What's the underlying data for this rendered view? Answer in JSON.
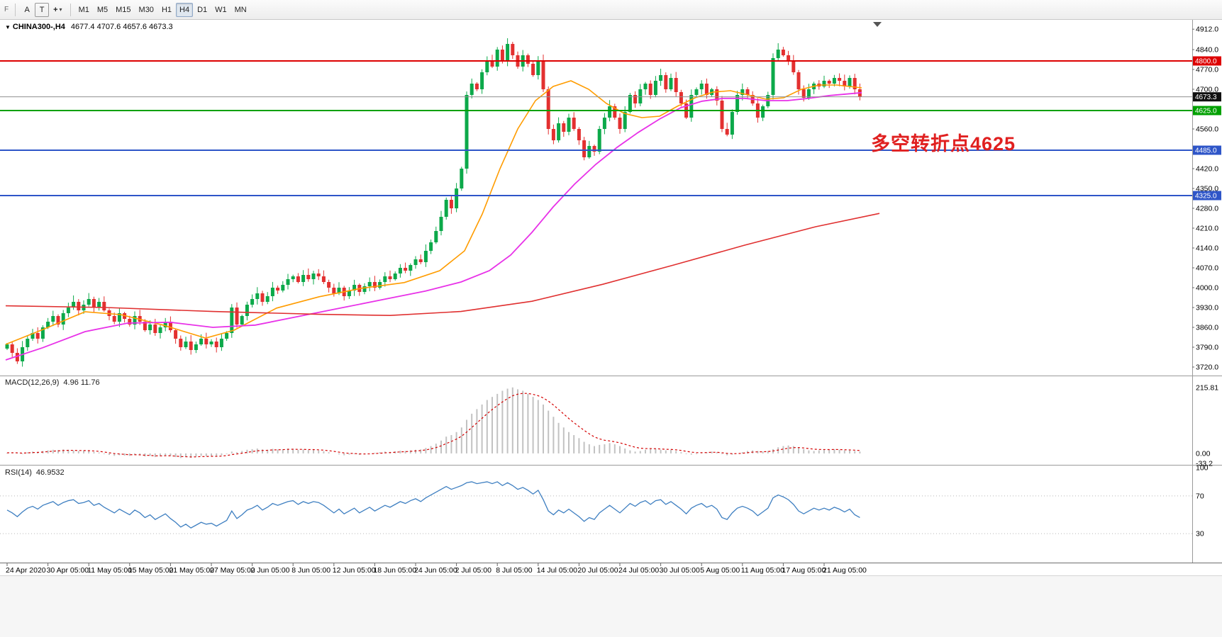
{
  "toolbar": {
    "edge_label": "F",
    "buttons": [
      {
        "id": "annotations-tool",
        "label": "A"
      },
      {
        "id": "text-tool",
        "label": "T"
      },
      {
        "id": "cursor-tool",
        "label": "+",
        "caret": "▾"
      }
    ],
    "timeframes": [
      "M1",
      "M5",
      "M15",
      "M30",
      "H1",
      "H4",
      "D1",
      "W1",
      "MN"
    ],
    "active_timeframe": "H4"
  },
  "chart": {
    "dropdown_glyph": "▼",
    "title": "CHINA300-,H4",
    "ohlc": "4677.4 4707.6 4657.6 4673.3",
    "macd_label": "MACD(12,26,9)",
    "macd_values": "4.96 11.76",
    "rsi_label": "RSI(14)",
    "rsi_value": "46.9532",
    "annotation": {
      "text": "多空转折点4625",
      "color": "#e02020"
    }
  },
  "chart_data": {
    "type": "candlestick",
    "symbol": "CHINA300-",
    "timeframe": "H4",
    "ohlc_header": {
      "open": 4677.4,
      "high": 4707.6,
      "low": 4657.6,
      "close": 4673.3
    },
    "price_axis": {
      "min": 3690,
      "max": 4940,
      "ticks": [
        4912.0,
        4840.0,
        4770.0,
        4700.0,
        4560.0,
        4420.0,
        4350.0,
        4280.0,
        4210.0,
        4140.0,
        4070.0,
        4000.0,
        3930.0,
        3860.0,
        3790.0,
        3720.0
      ]
    },
    "levels": [
      {
        "price": 4800.0,
        "line_color": "#dd0000",
        "tag_bg": "#dd0000",
        "width": 2,
        "current": false
      },
      {
        "price": 4673.3,
        "line_color": "#909090",
        "tag_bg": "#111111",
        "width": 1,
        "current": true
      },
      {
        "price": 4625.0,
        "line_color": "#00a000",
        "tag_bg": "#00a000",
        "width": 2,
        "current": false
      },
      {
        "price": 4485.0,
        "line_color": "#2e55c8",
        "tag_bg": "#2e55c8",
        "width": 2,
        "current": false
      },
      {
        "price": 4325.0,
        "line_color": "#2e55c8",
        "tag_bg": "#2e55c8",
        "width": 2,
        "current": false
      }
    ],
    "candles": {
      "up_color": "#0ca94a",
      "down_color": "#e33030",
      "closes": [
        3800,
        3770,
        3740,
        3790,
        3820,
        3840,
        3820,
        3860,
        3880,
        3900,
        3870,
        3910,
        3930,
        3950,
        3920,
        3940,
        3960,
        3930,
        3950,
        3920,
        3900,
        3880,
        3910,
        3890,
        3870,
        3900,
        3880,
        3850,
        3870,
        3840,
        3860,
        3880,
        3850,
        3820,
        3790,
        3810,
        3780,
        3800,
        3820,
        3800,
        3810,
        3790,
        3820,
        3840,
        3930,
        3870,
        3900,
        3940,
        3960,
        3980,
        3950,
        3970,
        4000,
        3990,
        4010,
        4030,
        4040,
        4020,
        4045,
        4030,
        4050,
        4040,
        4020,
        4000,
        3980,
        4000,
        3970,
        3990,
        4010,
        3985,
        4005,
        4020,
        4000,
        4020,
        4040,
        4030,
        4050,
        4070,
        4060,
        4080,
        4100,
        4090,
        4130,
        4160,
        4200,
        4250,
        4310,
        4280,
        4350,
        4420,
        4680,
        4720,
        4700,
        4760,
        4800,
        4780,
        4840,
        4800,
        4860,
        4820,
        4780,
        4820,
        4790,
        4750,
        4800,
        4700,
        4560,
        4520,
        4580,
        4550,
        4600,
        4560,
        4520,
        4460,
        4500,
        4480,
        4560,
        4600,
        4640,
        4600,
        4560,
        4620,
        4680,
        4650,
        4700,
        4720,
        4680,
        4730,
        4750,
        4700,
        4740,
        4690,
        4650,
        4600,
        4680,
        4700,
        4720,
        4680,
        4700,
        4660,
        4560,
        4540,
        4620,
        4680,
        4700,
        4680,
        4650,
        4600,
        4640,
        4680,
        4810,
        4840,
        4820,
        4800,
        4760,
        4700,
        4670,
        4700,
        4720,
        4710,
        4730,
        4720,
        4740,
        4730,
        4710,
        4740,
        4700,
        4673
      ]
    },
    "moving_averages": [
      {
        "name": "ma-fast",
        "color": "#ff9c00",
        "width": 1.6,
        "points": [
          [
            8,
            3800
          ],
          [
            60,
            3852
          ],
          [
            120,
            3915
          ],
          [
            170,
            3905
          ],
          [
            230,
            3868
          ],
          [
            290,
            3822
          ],
          [
            330,
            3850
          ],
          [
            390,
            3928
          ],
          [
            450,
            3968
          ],
          [
            510,
            3998
          ],
          [
            570,
            4018
          ],
          [
            620,
            4060
          ],
          [
            655,
            4130
          ],
          [
            680,
            4260
          ],
          [
            705,
            4420
          ],
          [
            730,
            4560
          ],
          [
            755,
            4660
          ],
          [
            780,
            4710
          ],
          [
            805,
            4730
          ],
          [
            830,
            4700
          ],
          [
            855,
            4650
          ],
          [
            880,
            4615
          ],
          [
            905,
            4600
          ],
          [
            930,
            4605
          ],
          [
            955,
            4640
          ],
          [
            980,
            4670
          ],
          [
            1005,
            4690
          ],
          [
            1030,
            4695
          ],
          [
            1055,
            4680
          ],
          [
            1080,
            4665
          ],
          [
            1105,
            4670
          ],
          [
            1130,
            4700
          ],
          [
            1155,
            4715
          ],
          [
            1180,
            4715
          ],
          [
            1215,
            4705
          ]
        ]
      },
      {
        "name": "ma-mid",
        "color": "#e832e8",
        "width": 1.8,
        "points": [
          [
            8,
            3745
          ],
          [
            60,
            3788
          ],
          [
            120,
            3845
          ],
          [
            180,
            3875
          ],
          [
            240,
            3878
          ],
          [
            300,
            3860
          ],
          [
            360,
            3868
          ],
          [
            420,
            3898
          ],
          [
            480,
            3928
          ],
          [
            540,
            3958
          ],
          [
            600,
            3988
          ],
          [
            650,
            4020
          ],
          [
            690,
            4060
          ],
          [
            720,
            4115
          ],
          [
            750,
            4195
          ],
          [
            780,
            4285
          ],
          [
            810,
            4365
          ],
          [
            840,
            4435
          ],
          [
            870,
            4495
          ],
          [
            900,
            4548
          ],
          [
            930,
            4595
          ],
          [
            960,
            4635
          ],
          [
            990,
            4658
          ],
          [
            1020,
            4668
          ],
          [
            1050,
            4668
          ],
          [
            1080,
            4660
          ],
          [
            1110,
            4660
          ],
          [
            1140,
            4668
          ],
          [
            1170,
            4678
          ],
          [
            1215,
            4688
          ]
        ]
      },
      {
        "name": "ma-slow",
        "color": "#e03030",
        "width": 1.6,
        "points": [
          [
            8,
            3936
          ],
          [
            150,
            3930
          ],
          [
            300,
            3916
          ],
          [
            450,
            3906
          ],
          [
            550,
            3902
          ],
          [
            650,
            3916
          ],
          [
            750,
            3952
          ],
          [
            850,
            4012
          ],
          [
            950,
            4080
          ],
          [
            1050,
            4150
          ],
          [
            1150,
            4215
          ],
          [
            1240,
            4262
          ]
        ]
      }
    ],
    "macd": {
      "label": "MACD(12,26,9)",
      "values_text": "4.96 11.76",
      "hist_color": "#c2c2c2",
      "signal_color": "#d40000",
      "scale_labels": [
        "215.81",
        "0.00",
        "-33.2"
      ],
      "scale_values": [
        215.81,
        0,
        -33.2
      ],
      "histogram": [
        2,
        3,
        1,
        -2,
        4,
        6,
        5,
        8,
        10,
        12,
        11,
        13,
        12,
        10,
        8,
        9,
        8,
        5,
        3,
        -2,
        -5,
        -8,
        -6,
        -7,
        -8,
        -4,
        -6,
        -10,
        -8,
        -12,
        -9,
        -6,
        -8,
        -12,
        -15,
        -12,
        -14,
        -10,
        -8,
        -9,
        -8,
        -10,
        -6,
        -2,
        6,
        4,
        8,
        12,
        14,
        16,
        13,
        12,
        15,
        13,
        14,
        16,
        15,
        12,
        13,
        11,
        12,
        10,
        7,
        4,
        0,
        -3,
        -6,
        -4,
        -2,
        -5,
        -3,
        0,
        2,
        4,
        6,
        5,
        7,
        9,
        8,
        10,
        12,
        13,
        18,
        24,
        32,
        42,
        55,
        60,
        70,
        85,
        110,
        130,
        145,
        160,
        175,
        185,
        195,
        205,
        212,
        216,
        210,
        205,
        195,
        185,
        175,
        160,
        140,
        120,
        100,
        85,
        70,
        60,
        50,
        38,
        30,
        24,
        28,
        30,
        34,
        30,
        24,
        16,
        10,
        6,
        8,
        12,
        16,
        14,
        12,
        10,
        12,
        8,
        4,
        -2,
        -4,
        -2,
        2,
        4,
        6,
        4,
        -2,
        -6,
        -4,
        0,
        4,
        8,
        10,
        8,
        6,
        8,
        14,
        20,
        24,
        26,
        24,
        20,
        14,
        10,
        8,
        10,
        12,
        12,
        14,
        12,
        10,
        10,
        8,
        6
      ]
    },
    "rsi": {
      "label": "RSI(14)",
      "value": 46.9532,
      "color": "#3e7fc1",
      "level_labels": [
        "100",
        "70",
        "30"
      ],
      "level_values": [
        100,
        70,
        30
      ],
      "dotted_levels": [
        70,
        30
      ],
      "points": [
        55,
        52,
        48,
        53,
        57,
        59,
        56,
        60,
        62,
        64,
        60,
        63,
        65,
        66,
        62,
        63,
        65,
        60,
        62,
        58,
        55,
        52,
        56,
        53,
        50,
        55,
        52,
        47,
        50,
        45,
        48,
        51,
        46,
        42,
        37,
        40,
        36,
        39,
        42,
        40,
        41,
        38,
        41,
        44,
        54,
        46,
        50,
        55,
        57,
        60,
        55,
        58,
        62,
        60,
        62,
        64,
        65,
        61,
        64,
        62,
        64,
        63,
        60,
        56,
        52,
        56,
        51,
        54,
        57,
        52,
        55,
        58,
        54,
        57,
        60,
        58,
        61,
        64,
        62,
        65,
        67,
        64,
        68,
        71,
        74,
        77,
        80,
        77,
        79,
        81,
        84,
        85,
        83,
        84,
        85,
        83,
        85,
        81,
        84,
        81,
        77,
        79,
        76,
        72,
        76,
        66,
        54,
        50,
        55,
        52,
        56,
        52,
        48,
        43,
        47,
        45,
        52,
        56,
        60,
        56,
        52,
        57,
        62,
        59,
        63,
        65,
        61,
        65,
        66,
        61,
        64,
        60,
        56,
        51,
        57,
        60,
        62,
        58,
        60,
        56,
        47,
        45,
        52,
        57,
        59,
        57,
        54,
        49,
        53,
        57,
        68,
        71,
        69,
        66,
        61,
        54,
        51,
        54,
        57,
        55,
        57,
        55,
        58,
        56,
        53,
        56,
        50,
        47
      ]
    },
    "time_axis": [
      "24 Apr 2020",
      "30 Apr 05:00",
      "11 May 05:00",
      "15 May 05:00",
      "21 May 05:00",
      "27 May 05:00",
      "2 Jun 05:00",
      "8 Jun 05:00",
      "12 Jun 05:00",
      "18 Jun 05:00",
      "24 Jun 05:00",
      "2 Jul 05:00",
      "8 Jul 05:00",
      "14 Jul 05:00",
      "20 Jul 05:00",
      "24 Jul 05:00",
      "30 Jul 05:00",
      "5 Aug 05:00",
      "11 Aug 05:00",
      "17 Aug 05:00",
      "21 Aug 05:00"
    ]
  }
}
